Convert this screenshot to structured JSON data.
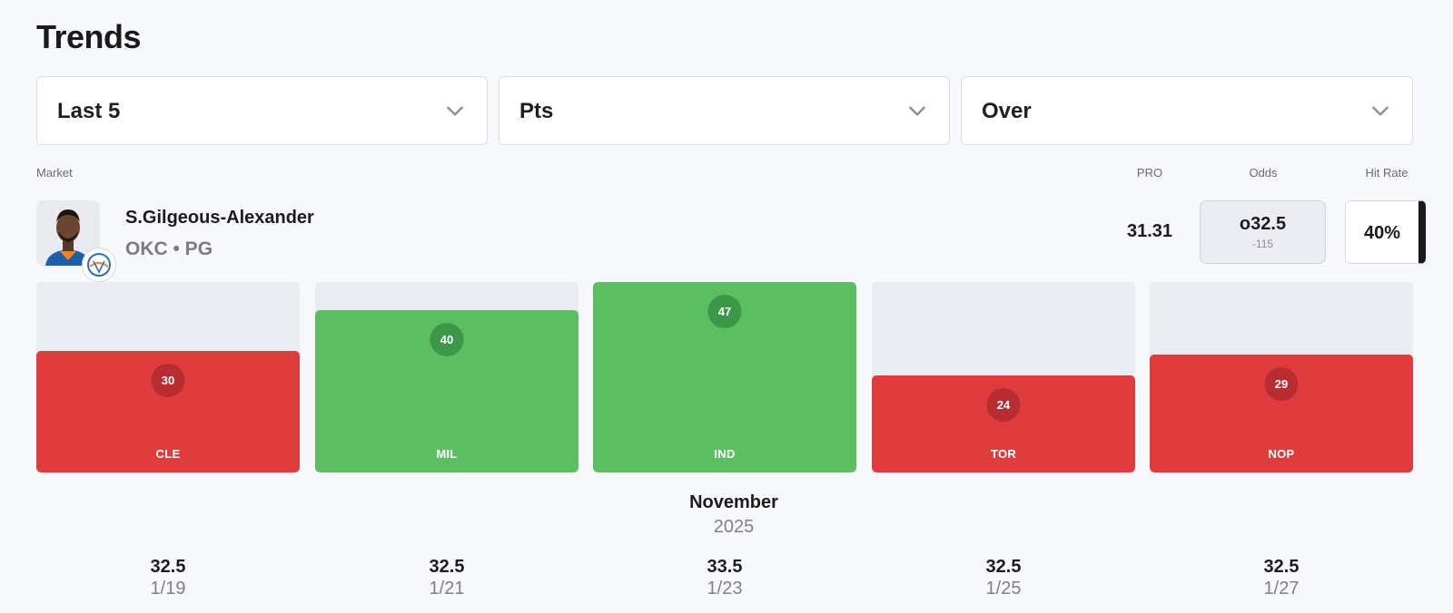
{
  "title": "Trends",
  "filters": {
    "range": "Last 5",
    "stat": "Pts",
    "side": "Over"
  },
  "headers": {
    "market": "Market",
    "pro": "PRO",
    "odds": "Odds",
    "hit_rate": "Hit Rate"
  },
  "player": {
    "name": "S.Gilgeous-Alexander",
    "meta": "OKC • PG",
    "pro": "31.31",
    "odds_line": "o32.5",
    "odds_price": "-115",
    "hit_rate": "40%"
  },
  "colors": {
    "over": "#5bbf62",
    "under": "#e03c3e"
  },
  "chart_data": {
    "type": "bar",
    "categories": [
      "CLE",
      "MIL",
      "IND",
      "TOR",
      "NOP"
    ],
    "values": [
      30,
      40,
      47,
      24,
      29
    ],
    "result": [
      "under",
      "over",
      "over",
      "under",
      "under"
    ],
    "ylim": [
      0,
      47
    ],
    "month": "November",
    "year": "2025",
    "games": [
      {
        "line": "32.5",
        "date": "1/19"
      },
      {
        "line": "32.5",
        "date": "1/21"
      },
      {
        "line": "33.5",
        "date": "1/23"
      },
      {
        "line": "32.5",
        "date": "1/25"
      },
      {
        "line": "32.5",
        "date": "1/27"
      }
    ]
  }
}
